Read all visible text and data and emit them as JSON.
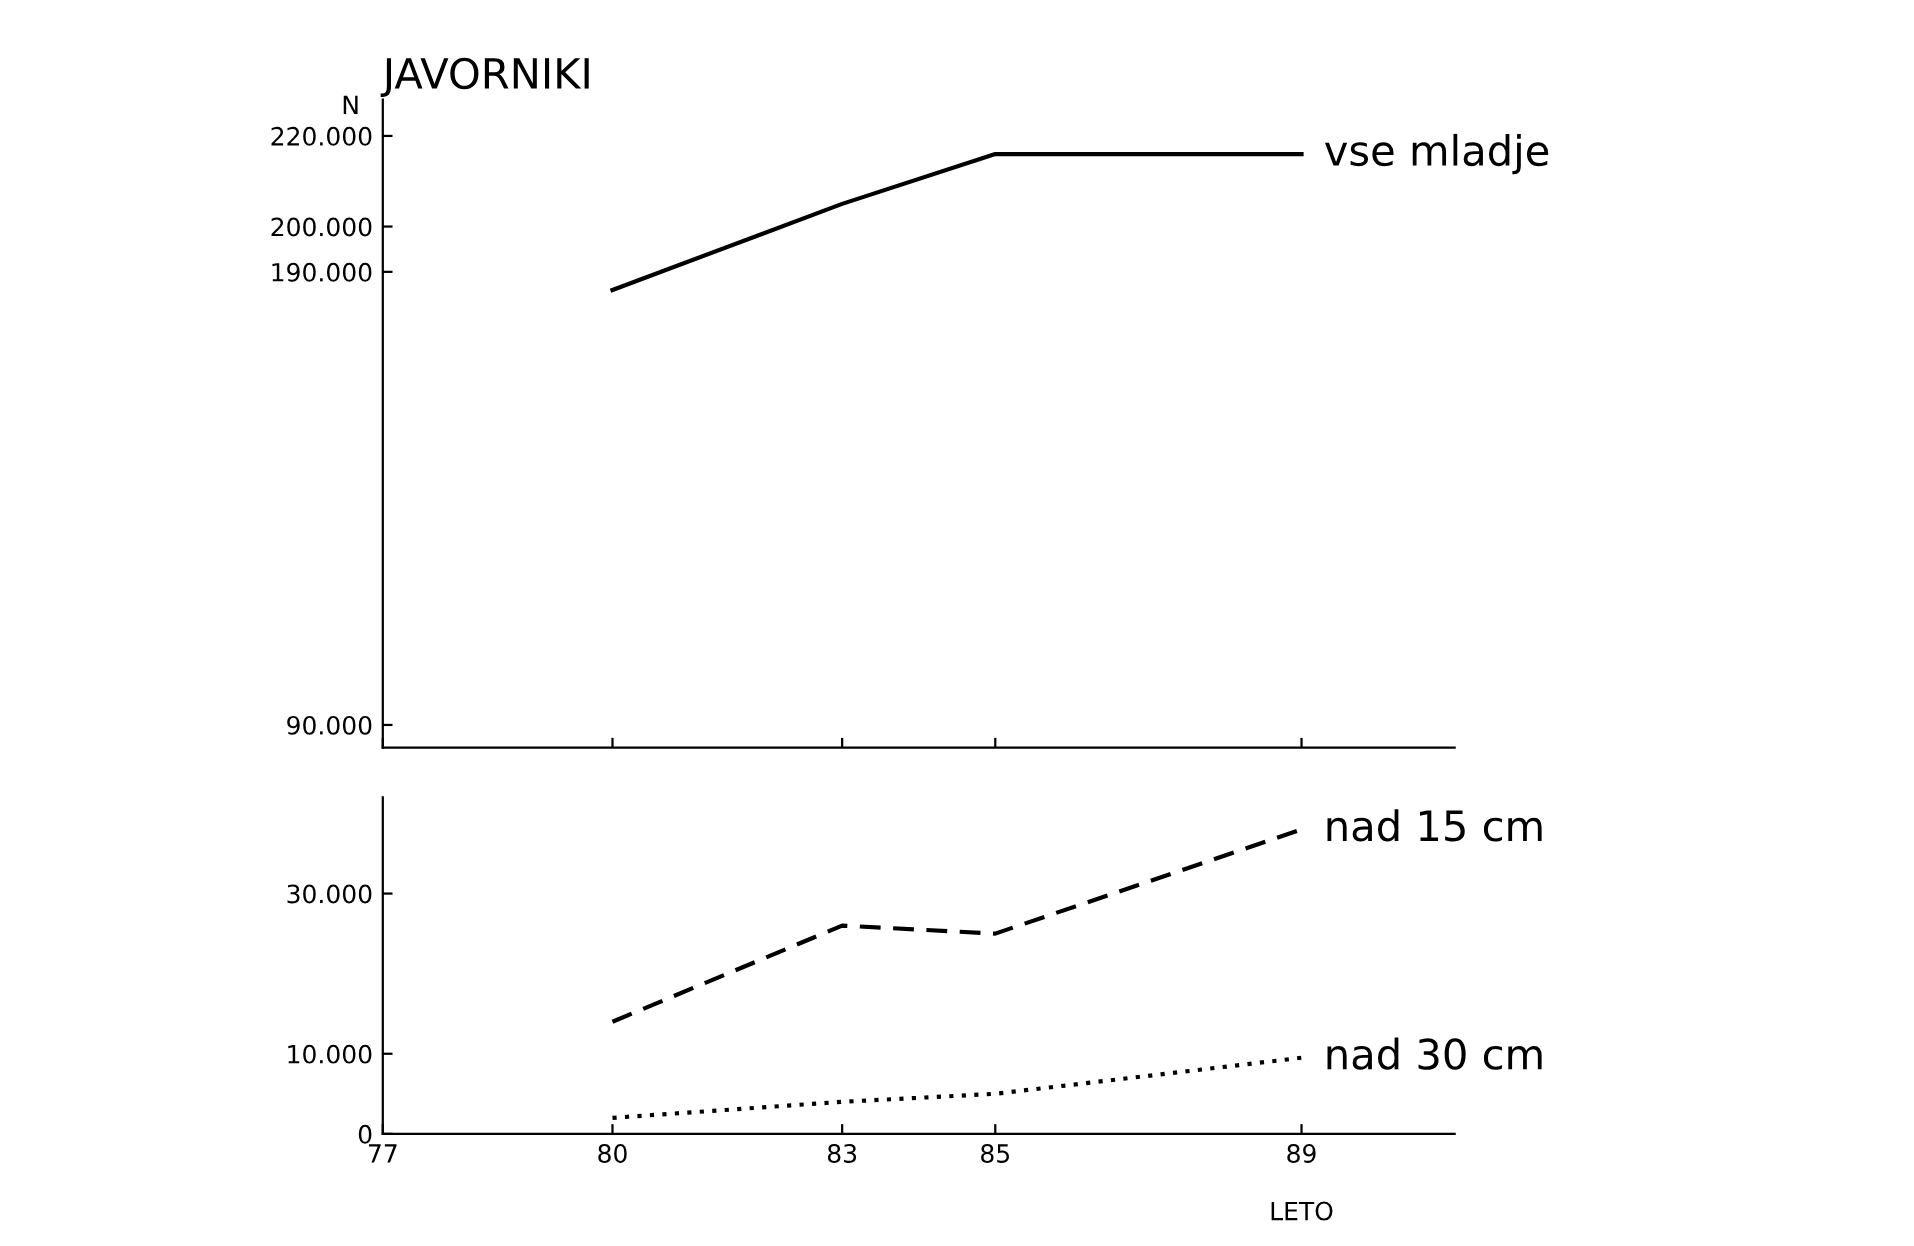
{
  "chart_data": [
    {
      "type": "line",
      "title": "JAVORNIKI",
      "ylabel": "N",
      "x": [
        80,
        83,
        85,
        89
      ],
      "series": [
        {
          "name": "vse mladje",
          "color": "#000000",
          "line_style": "solid",
          "values": [
            186000,
            205000,
            216000,
            216000
          ]
        }
      ],
      "xlim": [
        77,
        91
      ],
      "xticks": [
        77,
        80,
        83,
        85,
        89
      ],
      "tick_labels": "y",
      "ylim": [
        85000,
        228000
      ],
      "yticks": [
        {
          "value": 90000,
          "label": "90.000"
        },
        {
          "value": 190000,
          "label": "190.000"
        },
        {
          "value": 200000,
          "label": "200.000"
        },
        {
          "value": 220000,
          "label": "220.000"
        }
      ],
      "grid": false,
      "legend": false,
      "marker": "none"
    },
    {
      "type": "line",
      "xlabel": "LETO",
      "x": [
        80,
        83,
        85,
        89
      ],
      "series": [
        {
          "name": "nad 15 cm",
          "color": "#000000",
          "line_style": "dashed",
          "values": [
            14000,
            26000,
            25000,
            38000
          ]
        },
        {
          "name": "nad 30 cm",
          "color": "#000000",
          "line_style": "dotted",
          "values": [
            2000,
            4000,
            5000,
            9500
          ]
        }
      ],
      "xlim": [
        77,
        91
      ],
      "xticks": [
        77,
        80,
        83,
        85,
        89
      ],
      "ylim": [
        0,
        42000
      ],
      "yticks": [
        0,
        {
          "value": 10000,
          "label": "10.000"
        },
        {
          "value": 30000,
          "label": "30.000"
        }
      ],
      "grid": false,
      "legend": false,
      "marker": "none"
    }
  ]
}
